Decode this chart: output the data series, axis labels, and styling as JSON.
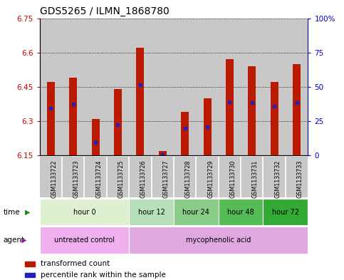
{
  "title": "GDS5265 / ILMN_1868780",
  "samples": [
    "GSM1133722",
    "GSM1133723",
    "GSM1133724",
    "GSM1133725",
    "GSM1133726",
    "GSM1133727",
    "GSM1133728",
    "GSM1133729",
    "GSM1133730",
    "GSM1133731",
    "GSM1133732",
    "GSM1133733"
  ],
  "bar_tops": [
    6.47,
    6.49,
    6.31,
    6.44,
    6.62,
    6.17,
    6.34,
    6.4,
    6.57,
    6.54,
    6.47,
    6.55
  ],
  "bar_bottom": 6.15,
  "blue_marks": [
    6.355,
    6.375,
    6.205,
    6.285,
    6.46,
    6.155,
    6.27,
    6.275,
    6.385,
    6.38,
    6.365,
    6.38
  ],
  "ylim_left": [
    6.15,
    6.75
  ],
  "ylim_right": [
    0,
    100
  ],
  "yticks_left": [
    6.15,
    6.3,
    6.45,
    6.6,
    6.75
  ],
  "yticks_left_labels": [
    "6.15",
    "6.3",
    "6.45",
    "6.6",
    "6.75"
  ],
  "yticks_right": [
    0,
    25,
    50,
    75,
    100
  ],
  "yticks_right_labels": [
    "0",
    "25",
    "50",
    "75",
    "100%"
  ],
  "bar_color": "#bb1a00",
  "blue_color": "#2222bb",
  "col_bg_color": "#c8c8c8",
  "time_groups": [
    {
      "label": "hour 0",
      "start": 0,
      "end": 4,
      "color": "#dff0d0"
    },
    {
      "label": "hour 12",
      "start": 4,
      "end": 6,
      "color": "#b8e0b8"
    },
    {
      "label": "hour 24",
      "start": 6,
      "end": 8,
      "color": "#88cc88"
    },
    {
      "label": "hour 48",
      "start": 8,
      "end": 10,
      "color": "#55bb55"
    },
    {
      "label": "hour 72",
      "start": 10,
      "end": 12,
      "color": "#33aa33"
    }
  ],
  "agent_groups": [
    {
      "label": "untreated control",
      "start": 0,
      "end": 4,
      "color": "#f0b0f0"
    },
    {
      "label": "mycophenolic acid",
      "start": 4,
      "end": 12,
      "color": "#e0a8e0"
    }
  ],
  "legend_items": [
    {
      "label": "transformed count",
      "color": "#bb1a00"
    },
    {
      "label": "percentile rank within the sample",
      "color": "#2222bb"
    }
  ],
  "left_color": "#cc0000",
  "right_color": "#0000cc",
  "title_fontsize": 10,
  "tick_fontsize": 7.5,
  "bar_width": 0.35
}
